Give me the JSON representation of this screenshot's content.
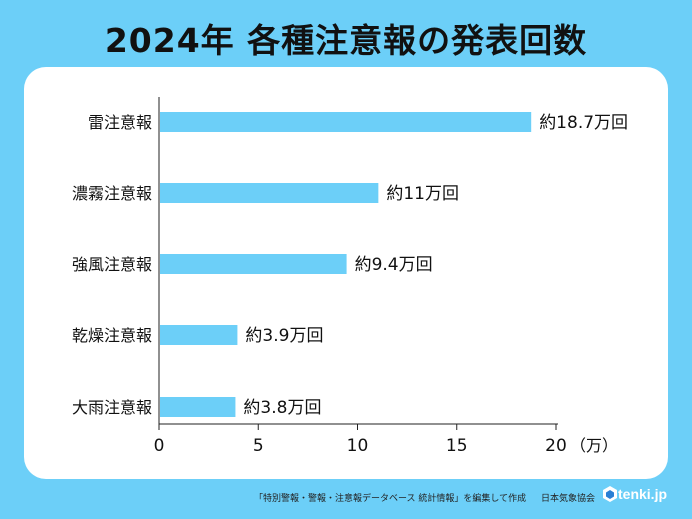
{
  "title": "2024年  各種注意報の発表回数",
  "chart_data": {
    "type": "bar",
    "orientation": "horizontal",
    "categories": [
      "雷注意報",
      "濃霧注意報",
      "強風注意報",
      "乾燥注意報",
      "大雨注意報"
    ],
    "values": [
      18.7,
      11,
      9.4,
      3.9,
      3.8
    ],
    "value_labels": [
      "約18.7万回",
      "約11万回",
      "約9.4万回",
      "約3.9万回",
      "約3.8万回"
    ],
    "xticks": [
      "0",
      "5",
      "10",
      "15",
      "20"
    ],
    "xlim": [
      0,
      20
    ],
    "x_unit": "（万）",
    "bar_color": "#6ccff8",
    "grid": false
  },
  "footer": {
    "source": "「特別警報・警報・注意報データベース 統計情報」を編集して作成",
    "org": "日本気象協会",
    "logo_text": "tenki.jp"
  }
}
